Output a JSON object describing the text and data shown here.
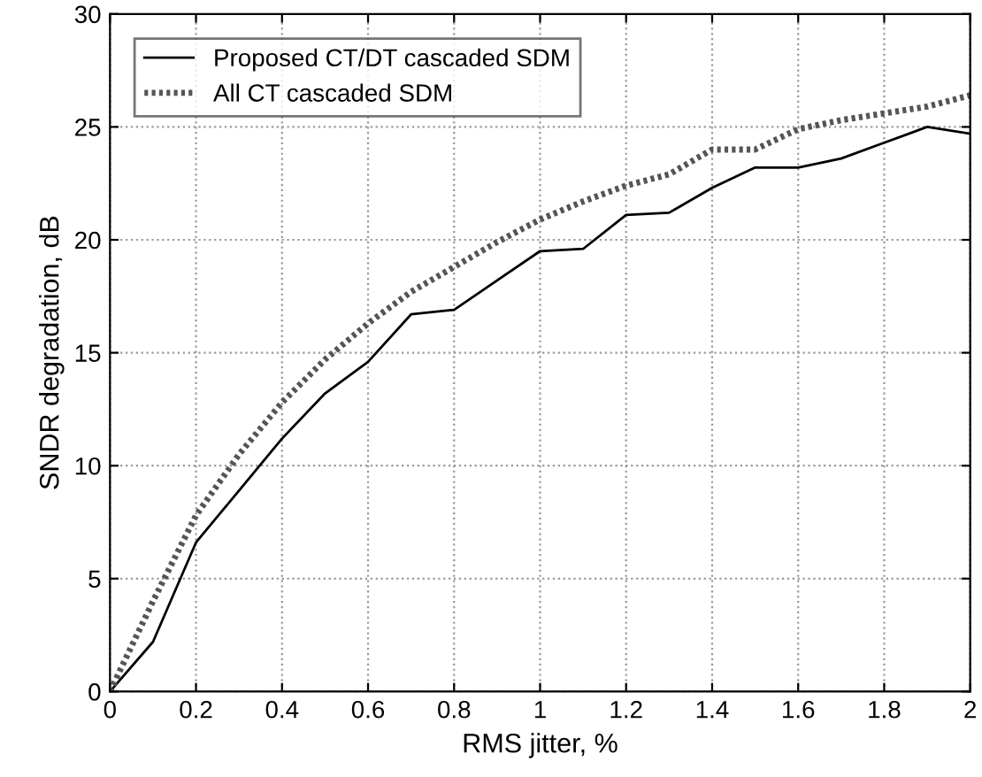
{
  "chart_data": {
    "type": "line",
    "xlabel": "RMS jitter, %",
    "ylabel": "SNDR degradation, dB",
    "x": [
      0,
      0.1,
      0.2,
      0.3,
      0.4,
      0.5,
      0.6,
      0.7,
      0.8,
      0.9,
      1.0,
      1.1,
      1.2,
      1.3,
      1.4,
      1.5,
      1.6,
      1.7,
      1.8,
      1.9,
      2.0
    ],
    "series": [
      {
        "name": "Proposed CT/DT cascaded SDM",
        "color": "#000000",
        "line_style": "solid",
        "values": [
          0,
          2.2,
          6.6,
          8.9,
          11.2,
          13.2,
          14.6,
          16.7,
          16.9,
          18.2,
          19.5,
          19.6,
          21.1,
          21.2,
          22.3,
          23.2,
          23.2,
          23.6,
          24.3,
          25.0,
          24.7
        ]
      },
      {
        "name": "All CT cascaded SDM",
        "color": "#555555",
        "line_style": "dotted",
        "values": [
          0,
          4.0,
          7.8,
          10.5,
          12.8,
          14.7,
          16.3,
          17.7,
          18.8,
          19.9,
          20.9,
          21.7,
          22.4,
          22.9,
          24.0,
          24.0,
          24.9,
          25.3,
          25.6,
          25.9,
          26.4
        ]
      }
    ],
    "xlim": [
      0,
      2
    ],
    "ylim": [
      0,
      30
    ],
    "xticks": [
      0,
      {
        "value": 0.2,
        "label": "0.2"
      },
      {
        "value": 0.4,
        "label": "0.4"
      },
      {
        "value": 0.6,
        "label": "0.6"
      },
      {
        "value": 0.8,
        "label": "0.8"
      },
      1,
      {
        "value": 1.2,
        "label": "1.2"
      },
      {
        "value": 1.4,
        "label": "1.4"
      },
      {
        "value": 1.6,
        "label": "1.6"
      },
      {
        "value": 1.8,
        "label": "1.8"
      },
      2
    ],
    "yticks": [
      0,
      5,
      10,
      15,
      20,
      25,
      30
    ],
    "grid": true,
    "legend": "top left",
    "marker": "none"
  }
}
